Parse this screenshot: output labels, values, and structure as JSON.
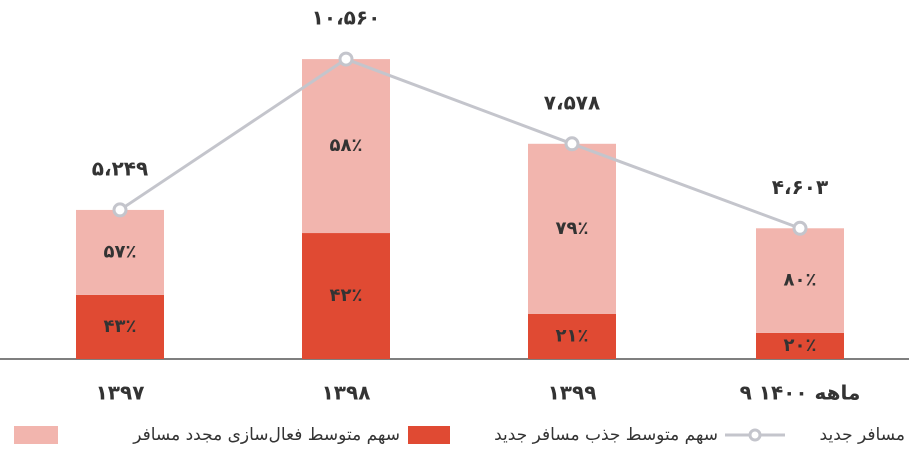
{
  "chart_data": {
    "type": "stacked-bar-line",
    "categories": [
      "۱۳۹۷",
      "۱۳۹۸",
      "۱۳۹۹",
      "۹ ماهه ۱۴۰۰"
    ],
    "series": [
      {
        "name": "سهم متوسط جذب مسافر جدید",
        "color": "#e04a33",
        "values": [
          43,
          42,
          21,
          20
        ],
        "value_labels": [
          "۴۳٪",
          "۴۲٪",
          "۲۱٪",
          "۲۰٪"
        ]
      },
      {
        "name": "سهم متوسط فعال‌سازی مجدد مسافر",
        "color": "#f2b5ae",
        "values": [
          57,
          58,
          79,
          80
        ],
        "value_labels": [
          "۵۷٪",
          "۵۸٪",
          "۷۹٪",
          "۸۰٪"
        ]
      },
      {
        "name": "مسافر جدید",
        "color": "#c4c5cc",
        "values": [
          5249,
          10560,
          7578,
          4603
        ],
        "value_labels": [
          "۵،۲۴۹",
          "۱۰،۵۶۰",
          "۷،۵۷۸",
          "۴،۶۰۳"
        ]
      }
    ]
  }
}
